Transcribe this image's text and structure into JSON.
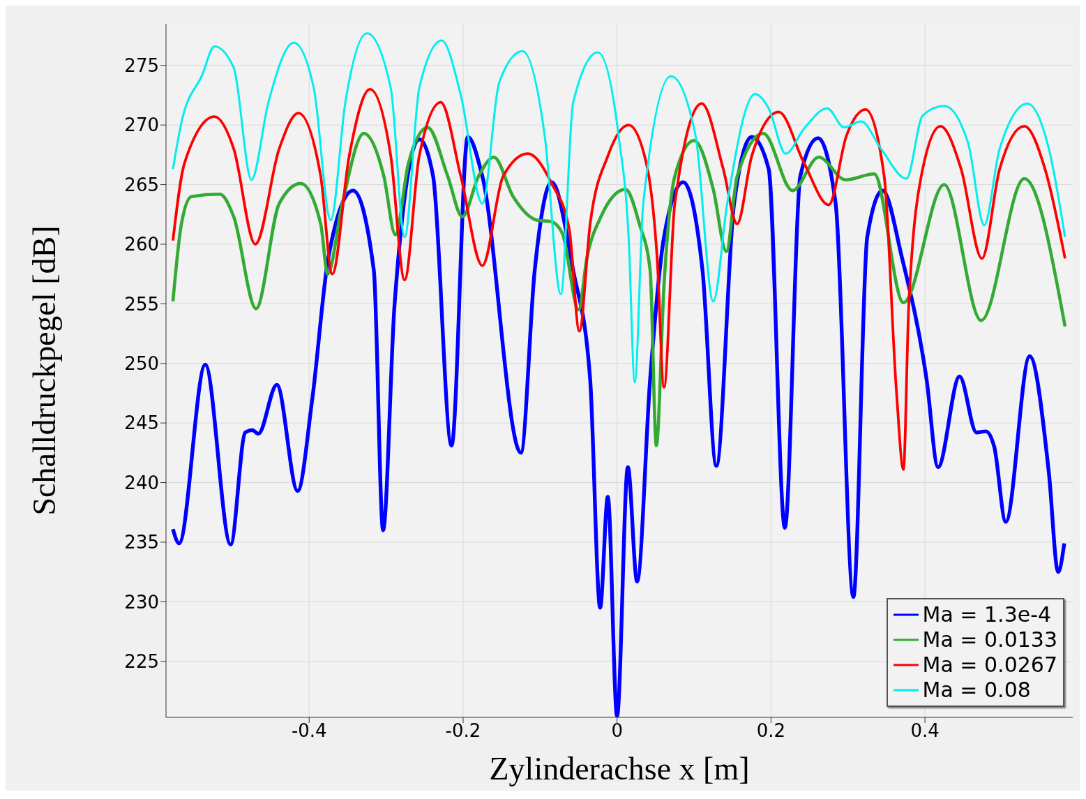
{
  "chart_data": {
    "type": "line",
    "xlabel": "Zylinderachse x [m]",
    "ylabel": "Schalldruckpegel [dB]",
    "xlim": [
      -0.586,
      0.592
    ],
    "xticks": [
      -0.4,
      -0.2,
      0,
      0.2,
      0.4
    ],
    "ylim": [
      220.3,
      278.5
    ],
    "yticks": [
      225,
      230,
      235,
      240,
      245,
      250,
      255,
      260,
      265,
      270,
      275
    ],
    "grid": true,
    "legend": "bottom right",
    "marker": "none",
    "line_style": "solid",
    "series": [
      {
        "name": "Ma = 1.3e-4",
        "color": "#0000ff",
        "x": [
          -0.577,
          -0.569,
          -0.535,
          -0.502,
          -0.483,
          -0.474,
          -0.466,
          -0.442,
          -0.415,
          -0.396,
          -0.375,
          -0.343,
          -0.316,
          -0.304,
          -0.289,
          -0.257,
          -0.239,
          -0.215,
          -0.194,
          -0.175,
          -0.125,
          -0.107,
          -0.085,
          -0.057,
          -0.035,
          -0.022,
          -0.012,
          0,
          0.014,
          0.026,
          0.043,
          0.061,
          0.086,
          0.111,
          0.129,
          0.152,
          0.175,
          0.197,
          0.218,
          0.238,
          0.261,
          0.284,
          0.307,
          0.325,
          0.345,
          0.37,
          0.402,
          0.417,
          0.445,
          0.467,
          0.479,
          0.49,
          0.505,
          0.536,
          0.561,
          0.573,
          0.581
        ],
        "values": [
          236.1,
          234.9,
          249.9,
          234.8,
          244.2,
          244.4,
          244.1,
          248.2,
          239.3,
          247,
          258.9,
          264.5,
          257.8,
          236,
          255,
          268.8,
          265.7,
          243.1,
          269,
          265.7,
          242.5,
          257.8,
          265.2,
          257.8,
          248.7,
          229.5,
          238.8,
          220.4,
          241.3,
          231.7,
          248.7,
          260.6,
          265.2,
          257.8,
          241.4,
          263.4,
          269,
          266.3,
          236.2,
          265.7,
          268.9,
          263.4,
          230.4,
          260.6,
          264.5,
          258.9,
          248.7,
          241.3,
          248.9,
          244.2,
          244.3,
          243,
          236.7,
          250.6,
          240.8,
          232.5,
          234.9
        ]
      },
      {
        "name": "Ma = 0.0133",
        "color": "#33aa33",
        "x": [
          -0.577,
          -0.566,
          -0.553,
          -0.516,
          -0.498,
          -0.469,
          -0.439,
          -0.411,
          -0.385,
          -0.376,
          -0.357,
          -0.329,
          -0.303,
          -0.288,
          -0.271,
          -0.246,
          -0.22,
          -0.201,
          -0.18,
          -0.16,
          -0.135,
          -0.103,
          -0.086,
          -0.071,
          -0.05,
          -0.039,
          -0.021,
          0.011,
          0.029,
          0.043,
          0.051,
          0.061,
          0.075,
          0.1,
          0.125,
          0.142,
          0.156,
          0.19,
          0.228,
          0.262,
          0.297,
          0.334,
          0.372,
          0.425,
          0.473,
          0.529,
          0.582
        ],
        "values": [
          255.2,
          261.7,
          264,
          264.2,
          262.3,
          254.6,
          263.4,
          265.1,
          261.7,
          257.5,
          263.4,
          269.3,
          265.7,
          260.8,
          266.8,
          269.8,
          265.7,
          262.3,
          265.7,
          267.3,
          264,
          262,
          261.9,
          260.9,
          254.5,
          258.9,
          262.3,
          264.6,
          261.7,
          257.8,
          243.1,
          256.6,
          265.7,
          268.7,
          264.6,
          259.4,
          265.7,
          269.3,
          264.5,
          267.3,
          265.4,
          265.9,
          255.1,
          265,
          253.6,
          265.5,
          253.1
        ]
      },
      {
        "name": "Ma = 0.0267",
        "color": "#ff0000",
        "x": [
          -0.577,
          -0.562,
          -0.523,
          -0.498,
          -0.47,
          -0.439,
          -0.414,
          -0.385,
          -0.37,
          -0.348,
          -0.321,
          -0.294,
          -0.276,
          -0.257,
          -0.229,
          -0.203,
          -0.175,
          -0.148,
          -0.116,
          -0.085,
          -0.062,
          -0.049,
          -0.035,
          -0.012,
          0.015,
          0.038,
          0.052,
          0.061,
          0.075,
          0.11,
          0.138,
          0.156,
          0.175,
          0.21,
          0.243,
          0.275,
          0.298,
          0.323,
          0.347,
          0.363,
          0.372,
          0.379,
          0.397,
          0.42,
          0.447,
          0.474,
          0.497,
          0.529,
          0.556,
          0.582
        ],
        "values": [
          260.3,
          266.8,
          270.7,
          268,
          260,
          268,
          271,
          265.7,
          257.5,
          267.4,
          273,
          267.4,
          257,
          267.4,
          271.9,
          265.7,
          258.2,
          265.7,
          267.6,
          265.1,
          261.2,
          252.7,
          261.7,
          267.4,
          270,
          266.8,
          258.9,
          248,
          263.4,
          271.8,
          266.3,
          261.7,
          267.4,
          271.1,
          266.8,
          263.3,
          269.1,
          271.3,
          265.7,
          247.6,
          241.1,
          254.9,
          266.3,
          269.9,
          266.3,
          258.8,
          266.3,
          269.9,
          266.3,
          258.8
        ]
      },
      {
        "name": "Ma = 0.08",
        "color": "#00eeee",
        "x": [
          -0.577,
          -0.566,
          -0.539,
          -0.523,
          -0.498,
          -0.475,
          -0.453,
          -0.42,
          -0.394,
          -0.372,
          -0.353,
          -0.325,
          -0.294,
          -0.276,
          -0.257,
          -0.228,
          -0.203,
          -0.175,
          -0.153,
          -0.123,
          -0.094,
          -0.073,
          -0.057,
          -0.025,
          0.002,
          0.015,
          0.023,
          0.034,
          0.07,
          0.102,
          0.125,
          0.143,
          0.179,
          0.197,
          0.219,
          0.243,
          0.273,
          0.295,
          0.317,
          0.343,
          0.376,
          0.397,
          0.425,
          0.456,
          0.477,
          0.497,
          0.533,
          0.561,
          0.582
        ],
        "values": [
          266.3,
          270.2,
          274.2,
          276.6,
          274.8,
          265.4,
          271.9,
          276.9,
          273.1,
          262,
          271.9,
          277.7,
          273.1,
          260.6,
          273.1,
          277.1,
          272.5,
          263.4,
          273.6,
          276.2,
          269.1,
          255.8,
          271.9,
          276.1,
          269.1,
          260.6,
          248.4,
          263.4,
          274.1,
          269.1,
          255.2,
          263.4,
          272.6,
          271.4,
          267.6,
          269.7,
          271.4,
          269.8,
          270.3,
          268,
          265.5,
          270.8,
          271.6,
          268.5,
          261.6,
          268,
          271.8,
          268,
          260.6
        ]
      }
    ]
  }
}
